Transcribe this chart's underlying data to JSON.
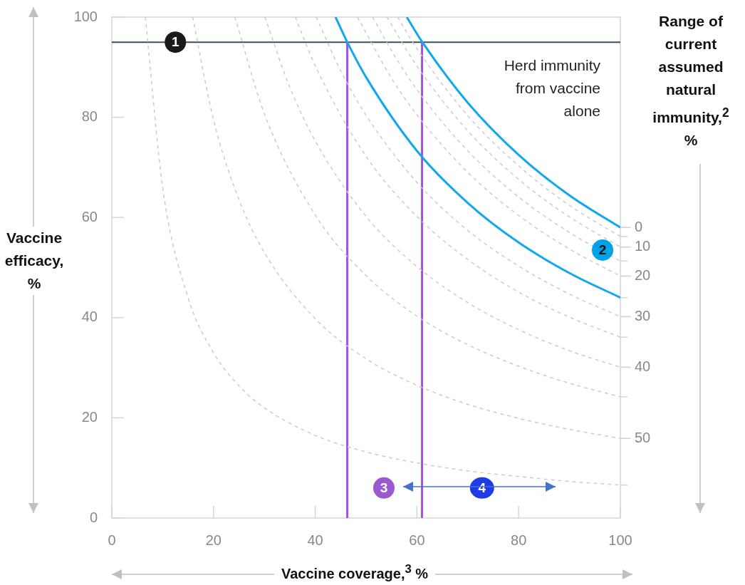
{
  "chart_data": {
    "type": "line",
    "xlabel": "Vaccine coverage,$^{3}$ %",
    "ylabel": "Vaccine efficacy, %",
    "xlim": [
      0,
      100
    ],
    "ylim": [
      0,
      100
    ],
    "xticks": [
      0,
      20,
      40,
      60,
      80,
      100
    ],
    "yticks": [
      0,
      20,
      40,
      60,
      80,
      100
    ],
    "grid": false,
    "marker": "none",
    "series": [
      {
        "color": "#cccccc",
        "line_style": "dashed",
        "x": [
          6.6,
          10,
          15,
          20,
          25,
          30,
          40,
          50,
          60,
          70,
          80,
          90,
          100
        ],
        "values": [
          100,
          66,
          44,
          33,
          26.4,
          22,
          16.5,
          13.2,
          11,
          9.4,
          8.3,
          7.3,
          6.6
        ]
      },
      {
        "color": "#cccccc",
        "line_style": "dashed",
        "x": [
          15.9,
          20,
          25,
          30,
          40,
          50,
          60,
          70,
          80,
          90,
          100
        ],
        "values": [
          100,
          79.5,
          63.6,
          53,
          39.8,
          31.8,
          26.5,
          22.7,
          19.9,
          17.7,
          15.9
        ]
      },
      {
        "color": "#cccccc",
        "line_style": "dashed",
        "x": [
          24.2,
          30,
          40,
          50,
          60,
          70,
          80,
          90,
          100
        ],
        "values": [
          100,
          80.7,
          60.5,
          48.4,
          40.3,
          34.6,
          30.3,
          26.9,
          24.2
        ]
      },
      {
        "color": "#cccccc",
        "line_style": "dashed",
        "x": [
          30.1,
          35,
          40,
          50,
          60,
          70,
          80,
          90,
          100
        ],
        "values": [
          100,
          86,
          75.3,
          60.2,
          50.2,
          43,
          37.6,
          33.4,
          30.1
        ]
      },
      {
        "color": "#cccccc",
        "line_style": "dashed",
        "x": [
          36.1,
          40,
          50,
          60,
          70,
          80,
          90,
          100
        ],
        "values": [
          100,
          90.3,
          72.2,
          60.2,
          51.6,
          45.1,
          40.1,
          36.1
        ]
      },
      {
        "color": "#cccccc",
        "line_style": "dashed",
        "x": [
          40.2,
          45,
          50,
          60,
          70,
          80,
          90,
          100
        ],
        "values": [
          100,
          89.3,
          80.4,
          67,
          57.4,
          50.3,
          44.7,
          40.2
        ]
      },
      {
        "color": "#cccccc",
        "line_style": "dashed",
        "x": [
          48.3,
          55,
          60,
          70,
          80,
          90,
          100
        ],
        "values": [
          100,
          87.8,
          80.5,
          69,
          60.4,
          53.7,
          48.3
        ]
      },
      {
        "color": "#cccccc",
        "line_style": "dashed",
        "x": [
          51.3,
          55,
          60,
          70,
          80,
          90,
          100
        ],
        "values": [
          100,
          93.3,
          85.5,
          73.3,
          64.1,
          57,
          51.3
        ]
      },
      {
        "color": "#cccccc",
        "line_style": "dashed",
        "x": [
          54.1,
          60,
          70,
          80,
          90,
          100
        ],
        "values": [
          100,
          90.2,
          77.3,
          67.6,
          60.1,
          54.1
        ]
      },
      {
        "color": "#cccccc",
        "line_style": "dashed",
        "x": [
          56.2,
          60,
          70,
          80,
          90,
          100
        ],
        "values": [
          100,
          93.7,
          80.3,
          70.3,
          62.4,
          56.2
        ]
      },
      {
        "color": "#0fa8f0",
        "x": [
          44,
          46.3,
          50,
          60,
          70,
          80,
          90,
          100
        ],
        "values": [
          100,
          95,
          88,
          73.3,
          62.9,
          55,
          48.9,
          44
        ]
      },
      {
        "color": "#0fa8f0",
        "x": [
          58,
          61,
          70,
          80,
          90,
          100
        ],
        "values": [
          100,
          95.1,
          82.9,
          72.5,
          64.4,
          58
        ]
      },
      {
        "color": "#a64ff0",
        "x": [
          46.3,
          46.3
        ],
        "values": [
          0,
          95
        ]
      },
      {
        "color": "#a64ff0",
        "x": [
          61,
          61
        ],
        "values": [
          0,
          95
        ]
      }
    ],
    "ref_lines": [
      {
        "axis": "y",
        "value": 95,
        "color": "#3d4f5c"
      }
    ],
    "annotations": [
      "Range of current assumed natural immunity,$^{2}$ %",
      "Herd immunity from vaccine alone",
      {
        "text": "0",
        "x": 100,
        "y": 58
      },
      {
        "text": "10",
        "x": 100,
        "y": 54.1
      },
      {
        "text": "20",
        "x": 100,
        "y": 48.3
      },
      {
        "text": "30",
        "x": 100,
        "y": 40.2
      },
      {
        "text": "40",
        "x": 100,
        "y": 30.1
      },
      {
        "text": "50",
        "x": 100,
        "y": 15.9
      },
      {
        "text": "1",
        "x": 12.5,
        "y": 95
      },
      {
        "text": "2",
        "x": 96.5,
        "y": 53.5
      },
      {
        "text": "3",
        "x": 53.5,
        "y": 6
      },
      {
        "text": "4",
        "x": 72.8,
        "y": 6
      }
    ]
  }
}
